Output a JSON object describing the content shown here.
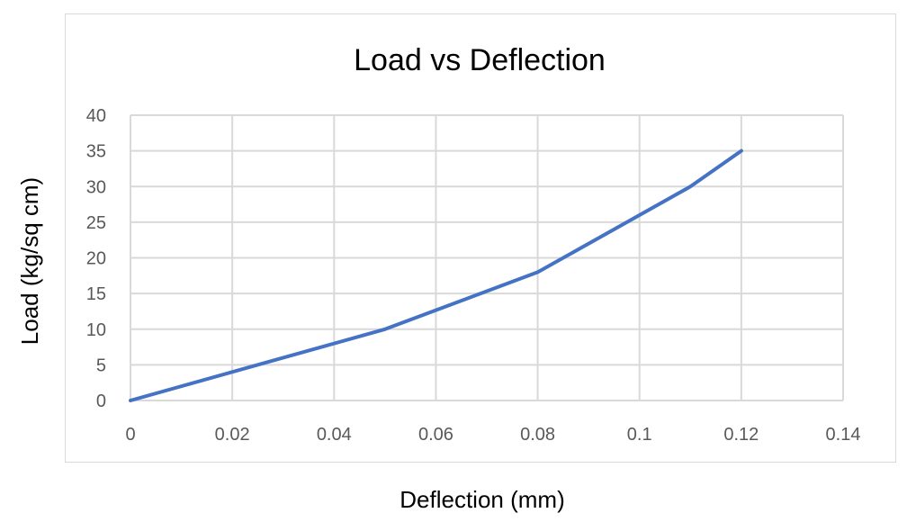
{
  "chart_data": {
    "type": "line",
    "title": "Load vs Deflection",
    "xlabel": "Deflection (mm)",
    "ylabel": "Load (kg/sq cm)",
    "xlim": [
      0,
      0.14
    ],
    "ylim": [
      0,
      40
    ],
    "x_ticks": [
      "0",
      "0.02",
      "0.04",
      "0.06",
      "0.08",
      "0.1",
      "0.12",
      "0.14"
    ],
    "x_tick_values": [
      0,
      0.02,
      0.04,
      0.06,
      0.08,
      0.1,
      0.12,
      0.14
    ],
    "y_ticks": [
      "0",
      "5",
      "10",
      "15",
      "20",
      "25",
      "30",
      "35",
      "40"
    ],
    "y_tick_values": [
      0,
      5,
      10,
      15,
      20,
      25,
      30,
      35,
      40
    ],
    "grid": true,
    "legend": "none",
    "series": [
      {
        "color": "#4472c4",
        "x": [
          0,
          0.05,
          0.08,
          0.11,
          0.12
        ],
        "y": [
          0,
          10,
          18,
          30,
          35
        ]
      }
    ]
  }
}
